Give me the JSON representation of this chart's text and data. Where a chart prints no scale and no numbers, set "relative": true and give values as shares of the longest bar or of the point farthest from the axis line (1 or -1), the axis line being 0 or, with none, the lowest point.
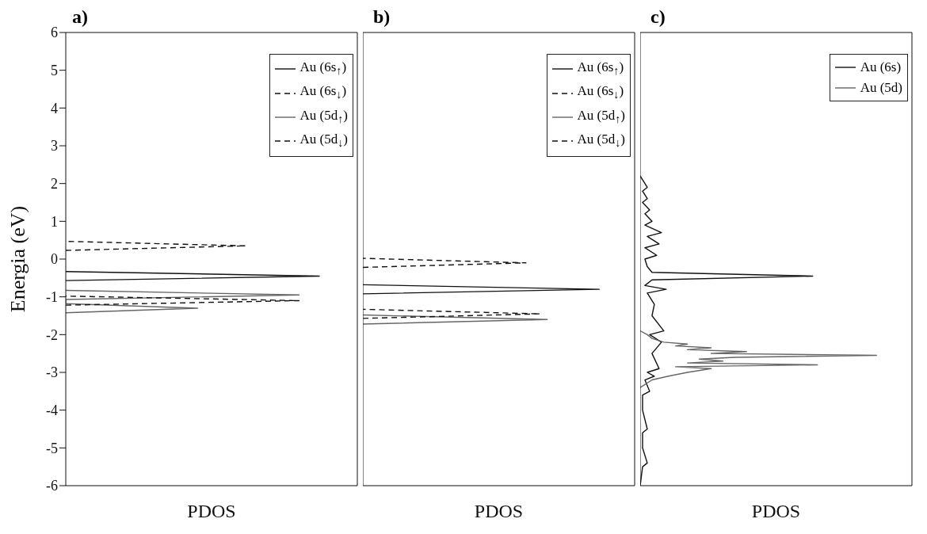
{
  "chart_data": [
    {
      "type": "line",
      "title": "a)",
      "ylabel": "Energia (eV)",
      "xlabel": "PDOS",
      "orientation": "horizontal",
      "relative": true,
      "ylim": [
        -6,
        6
      ],
      "yticks": [
        -6,
        -5,
        -4,
        -3,
        -2,
        -1,
        0,
        1,
        2,
        3,
        4,
        5,
        6
      ],
      "legend": "top right",
      "series": [
        {
          "name": "Au (6s$_{↑}$)",
          "color": "#111111",
          "line_style": "solid",
          "x": [
            -0.57,
            -0.45,
            -0.33
          ],
          "values": [
            0,
            1,
            0
          ]
        },
        {
          "name": "Au (6s$_{↓}$)",
          "color": "#111111",
          "line_style": "dashed",
          "x": [
            0.23,
            0.35,
            0.47
          ],
          "values": [
            0,
            0.71,
            0
          ]
        },
        {
          "name": "Au (5d$_{↑}$)",
          "color": "#666666",
          "line_style": "solid",
          "x": [
            -1.42,
            -1.3,
            -1.18,
            -1.07,
            -0.95,
            -0.83
          ],
          "values": [
            0,
            0.52,
            0,
            0,
            0.92,
            0
          ]
        },
        {
          "name": "Au (5d$_{↓}$)",
          "color": "#111111",
          "line_style": "dashed",
          "x": [
            -1.22,
            -1.1,
            -0.98
          ],
          "values": [
            0,
            0.92,
            0
          ]
        }
      ]
    },
    {
      "type": "line",
      "title": "b)",
      "xlabel": "PDOS",
      "orientation": "horizontal",
      "relative": true,
      "ylim": [
        -6,
        6
      ],
      "yticks": [
        -6,
        -5,
        -4,
        -3,
        -2,
        -1,
        0,
        1,
        2,
        3,
        4,
        5,
        6
      ],
      "tick_labels": false,
      "legend": "top right",
      "series": [
        {
          "name": "Au (6s$_{↑}$)",
          "color": "#111111",
          "line_style": "solid",
          "x": [
            -0.92,
            -0.8,
            -0.68
          ],
          "values": [
            0,
            1,
            0
          ]
        },
        {
          "name": "Au (6s$_{↓}$)",
          "color": "#111111",
          "line_style": "dashed",
          "x": [
            -0.22,
            -0.1,
            0.02
          ],
          "values": [
            0,
            0.69,
            0
          ]
        },
        {
          "name": "Au (5d$_{↑}$)",
          "color": "#666666",
          "line_style": "solid",
          "x": [
            -1.72,
            -1.6,
            -1.48
          ],
          "values": [
            0,
            0.78,
            0
          ]
        },
        {
          "name": "Au (5d$_{↓}$)",
          "color": "#111111",
          "line_style": "dashed",
          "x": [
            -1.57,
            -1.45,
            -1.33
          ],
          "values": [
            0,
            0.75,
            0
          ]
        }
      ]
    },
    {
      "type": "line",
      "title": "c)",
      "xlabel": "PDOS",
      "orientation": "horizontal",
      "relative": true,
      "ylim": [
        -6,
        6
      ],
      "yticks": [
        -6,
        -5,
        -4,
        -3,
        -2,
        -1,
        0,
        1,
        2,
        3,
        4,
        5,
        6
      ],
      "tick_labels": false,
      "legend": "top right",
      "series": [
        {
          "name": "Au (6s)",
          "color": "#111111",
          "line_style": "solid",
          "x": [
            -6,
            -5.5,
            -5.4,
            -5,
            -4.6,
            -4.5,
            -4,
            -3.6,
            -3.5,
            -3.2,
            -3.1,
            -3.0,
            -2.9,
            -2.5,
            -2.2,
            -2.0,
            -1.9,
            -1.5,
            -1.2,
            -0.9,
            -0.8,
            -0.7,
            -0.55,
            -0.45,
            -0.35,
            -0.2,
            0,
            0.1,
            0.3,
            0.4,
            0.6,
            0.7,
            0.9,
            1.0,
            1.2,
            1.3,
            1.5,
            1.6,
            1.8,
            1.9,
            2.1,
            2.2
          ],
          "values": [
            0,
            0.01,
            0.03,
            0.01,
            0.01,
            0.03,
            0.01,
            0.01,
            0.04,
            0.02,
            0.06,
            0.03,
            0.08,
            0.05,
            0.09,
            0.04,
            0.1,
            0.05,
            0.06,
            0.03,
            0.11,
            0.02,
            0.05,
            0.73,
            0.05,
            0.03,
            0.02,
            0.07,
            0.02,
            0.08,
            0.03,
            0.09,
            0.02,
            0.05,
            0.02,
            0.04,
            0.01,
            0.03,
            0.01,
            0.03,
            0.01,
            0
          ]
        },
        {
          "name": "Au (5d)",
          "color": "#666666",
          "line_style": "solid",
          "x": [
            -3.4,
            -3.2,
            -3.1,
            -3.0,
            -2.9,
            -2.85,
            -2.8,
            -2.75,
            -2.7,
            -2.65,
            -2.6,
            -2.55,
            -2.5,
            -2.45,
            -2.4,
            -2.35,
            -2.3,
            -2.25,
            -2.2,
            -2.1,
            -2.0,
            -1.9
          ],
          "values": [
            0,
            0.05,
            0.12,
            0.2,
            0.3,
            0.15,
            0.75,
            0.2,
            0.35,
            0.25,
            0.4,
            1.0,
            0.3,
            0.45,
            0.2,
            0.3,
            0.15,
            0.2,
            0.1,
            0.05,
            0.03,
            0
          ]
        }
      ]
    }
  ]
}
